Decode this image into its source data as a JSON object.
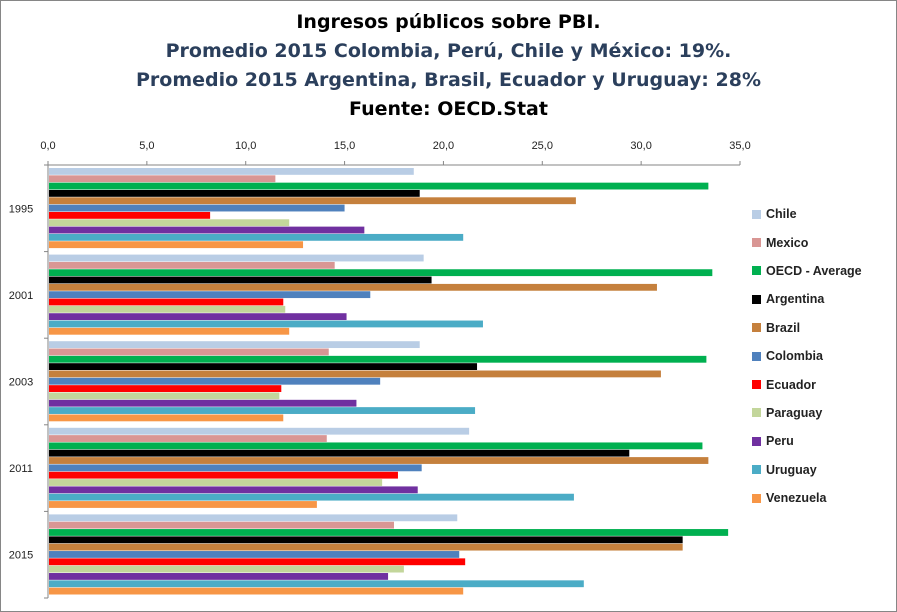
{
  "titles": {
    "line1": "Ingresos públicos sobre PBI.",
    "line2": "Promedio 2015 Colombia, Perú, Chile y México: 19%.",
    "line3": "Promedio 2015 Argentina, Brasil, Ecuador y Uruguay: 28%",
    "line4": "Fuente: OECD.Stat"
  },
  "chart_data": {
    "type": "bar",
    "orientation": "horizontal",
    "title": "Ingresos públicos sobre PBI.",
    "xlim": [
      0,
      35
    ],
    "x_ticks": [
      "0,0",
      "5,0",
      "10,0",
      "15,0",
      "20,0",
      "25,0",
      "30,0",
      "35,0"
    ],
    "x_axis_position": "top",
    "grid": false,
    "legend_position": "right",
    "categories": [
      "1995",
      "2001",
      "2003",
      "2011",
      "2015"
    ],
    "series": [
      {
        "name": "Chile",
        "color": "#b9cde5",
        "values": [
          18.5,
          19.0,
          18.8,
          21.3,
          20.7
        ]
      },
      {
        "name": "Mexico",
        "color": "#d99694",
        "values": [
          11.5,
          14.5,
          14.2,
          14.1,
          17.5
        ]
      },
      {
        "name": "OECD - Average",
        "color": "#00b050",
        "values": [
          33.4,
          33.6,
          33.3,
          33.1,
          34.4
        ]
      },
      {
        "name": "Argentina",
        "color": "#000000",
        "values": [
          18.8,
          19.4,
          21.7,
          29.4,
          32.1
        ]
      },
      {
        "name": "Brazil",
        "color": "#c5803d",
        "values": [
          26.7,
          30.8,
          31.0,
          33.4,
          32.1
        ]
      },
      {
        "name": "Colombia",
        "color": "#4f81bd",
        "values": [
          15.0,
          16.3,
          16.8,
          18.9,
          20.8
        ]
      },
      {
        "name": "Ecuador",
        "color": "#ff0000",
        "values": [
          8.2,
          11.9,
          11.8,
          17.7,
          21.1
        ]
      },
      {
        "name": "Paraguay",
        "color": "#c3d69b",
        "values": [
          12.2,
          12.0,
          11.7,
          16.9,
          18.0
        ]
      },
      {
        "name": "Peru",
        "color": "#7030a0",
        "values": [
          16.0,
          15.1,
          15.6,
          18.7,
          17.2
        ]
      },
      {
        "name": "Uruguay",
        "color": "#4bacc6",
        "values": [
          21.0,
          22.0,
          21.6,
          26.6,
          27.1
        ]
      },
      {
        "name": "Venezuela",
        "color": "#f79646",
        "values": [
          12.9,
          12.2,
          11.9,
          13.6,
          21.0
        ]
      }
    ]
  }
}
